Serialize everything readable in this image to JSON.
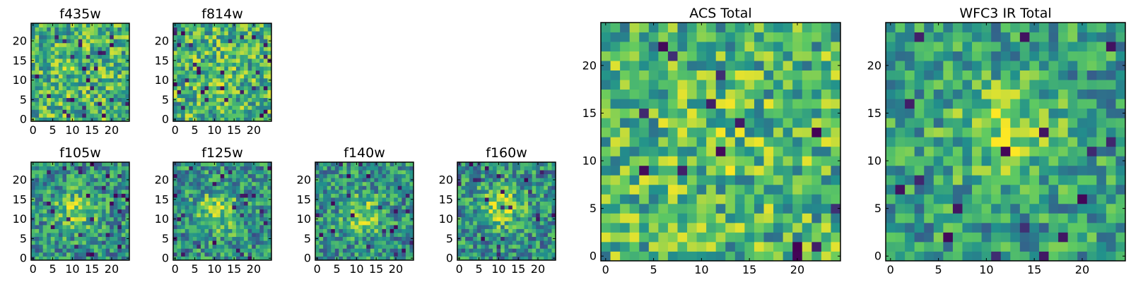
{
  "colors": {
    "viridis": [
      "#440154",
      "#3b528b",
      "#21918c",
      "#5ec962",
      "#fde725"
    ],
    "frame": "#000000",
    "background": "#ffffff"
  },
  "chart_data": [
    {
      "type": "heatmap",
      "title": "f435w",
      "grid_size": 25,
      "xlim": [
        -0.5,
        24.5
      ],
      "ylim": [
        -0.5,
        24.5
      ],
      "xticks": [
        0,
        5,
        10,
        15,
        20
      ],
      "yticks": [
        0,
        5,
        10,
        15,
        20
      ],
      "xtick_labels": [
        "0",
        "5",
        "10",
        "15",
        "20"
      ],
      "ytick_labels": [
        "0",
        "5",
        "10",
        "15",
        "20"
      ],
      "colormap": "viridis",
      "value_range": [
        0,
        1
      ],
      "seed": 435,
      "peak": {
        "x": 12,
        "y": 12,
        "amplitude": 0.05
      },
      "noise": 0.3,
      "base": 0.65
    },
    {
      "type": "heatmap",
      "title": "f814w",
      "grid_size": 25,
      "xlim": [
        -0.5,
        24.5
      ],
      "ylim": [
        -0.5,
        24.5
      ],
      "xticks": [
        0,
        5,
        10,
        15,
        20
      ],
      "yticks": [
        0,
        5,
        10,
        15,
        20
      ],
      "xtick_labels": [
        "0",
        "5",
        "10",
        "15",
        "20"
      ],
      "ytick_labels": [
        "0",
        "5",
        "10",
        "15",
        "20"
      ],
      "colormap": "viridis",
      "value_range": [
        0,
        1
      ],
      "seed": 814,
      "peak": {
        "x": 12,
        "y": 12,
        "amplitude": 0.05
      },
      "noise": 0.3,
      "base": 0.65
    },
    {
      "type": "heatmap",
      "title": "f105w",
      "grid_size": 25,
      "xlim": [
        -0.5,
        24.5
      ],
      "ylim": [
        -0.5,
        24.5
      ],
      "xticks": [
        0,
        5,
        10,
        15,
        20
      ],
      "yticks": [
        0,
        5,
        10,
        15,
        20
      ],
      "xtick_labels": [
        "0",
        "5",
        "10",
        "15",
        "20"
      ],
      "ytick_labels": [
        "0",
        "5",
        "10",
        "15",
        "20"
      ],
      "colormap": "viridis",
      "value_range": [
        0,
        1
      ],
      "seed": 105,
      "peak": {
        "x": 11,
        "y": 12,
        "amplitude": 0.3
      },
      "noise": 0.28,
      "base": 0.5
    },
    {
      "type": "heatmap",
      "title": "f125w",
      "grid_size": 25,
      "xlim": [
        -0.5,
        24.5
      ],
      "ylim": [
        -0.5,
        24.5
      ],
      "xticks": [
        0,
        5,
        10,
        15,
        20
      ],
      "yticks": [
        0,
        5,
        10,
        15,
        20
      ],
      "xtick_labels": [
        "0",
        "5",
        "10",
        "15",
        "20"
      ],
      "ytick_labels": [
        "0",
        "5",
        "10",
        "15",
        "20"
      ],
      "colormap": "viridis",
      "value_range": [
        0,
        1
      ],
      "seed": 125,
      "peak": {
        "x": 11,
        "y": 12,
        "amplitude": 0.3
      },
      "noise": 0.28,
      "base": 0.5
    },
    {
      "type": "heatmap",
      "title": "f140w",
      "grid_size": 25,
      "xlim": [
        -0.5,
        24.5
      ],
      "ylim": [
        -0.5,
        24.5
      ],
      "xticks": [
        0,
        5,
        10,
        15,
        20
      ],
      "yticks": [
        0,
        5,
        10,
        15,
        20
      ],
      "xtick_labels": [
        "0",
        "5",
        "10",
        "15",
        "20"
      ],
      "ytick_labels": [
        "0",
        "5",
        "10",
        "15",
        "20"
      ],
      "colormap": "viridis",
      "value_range": [
        0,
        1
      ],
      "seed": 140,
      "peak": {
        "x": 12,
        "y": 11,
        "amplitude": 0.3
      },
      "noise": 0.28,
      "base": 0.5
    },
    {
      "type": "heatmap",
      "title": "f160w",
      "grid_size": 25,
      "xlim": [
        -0.5,
        24.5
      ],
      "ylim": [
        -0.5,
        24.5
      ],
      "xticks": [
        0,
        5,
        10,
        15,
        20
      ],
      "yticks": [
        0,
        5,
        10,
        15,
        20
      ],
      "xtick_labels": [
        "0",
        "5",
        "10",
        "15",
        "20"
      ],
      "ytick_labels": [
        "0",
        "5",
        "10",
        "15",
        "20"
      ],
      "colormap": "viridis",
      "value_range": [
        0,
        1
      ],
      "seed": 160,
      "peak": {
        "x": 11,
        "y": 13,
        "amplitude": 0.32
      },
      "noise": 0.28,
      "base": 0.5
    },
    {
      "type": "heatmap",
      "title": "ACS Total",
      "grid_size": 25,
      "xlim": [
        -0.5,
        24.5
      ],
      "ylim": [
        -0.5,
        24.5
      ],
      "xticks": [
        0,
        5,
        10,
        15,
        20
      ],
      "yticks": [
        0,
        5,
        10,
        15,
        20
      ],
      "xtick_labels": [
        "0",
        "5",
        "10",
        "15",
        "20"
      ],
      "ytick_labels": [
        "0",
        "5",
        "10",
        "15",
        "20"
      ],
      "colormap": "viridis",
      "value_range": [
        0,
        1
      ],
      "seed": 7,
      "peak": {
        "x": 12,
        "y": 12,
        "amplitude": 0.06
      },
      "noise": 0.3,
      "base": 0.66
    },
    {
      "type": "heatmap",
      "title": "WFC3 IR Total",
      "grid_size": 25,
      "xlim": [
        -0.5,
        24.5
      ],
      "ylim": [
        -0.5,
        24.5
      ],
      "xticks": [
        0,
        5,
        10,
        15,
        20
      ],
      "yticks": [
        0,
        5,
        10,
        15,
        20
      ],
      "xtick_labels": [
        "0",
        "5",
        "10",
        "15",
        "20"
      ],
      "ytick_labels": [
        "0",
        "5",
        "10",
        "15",
        "20"
      ],
      "colormap": "viridis",
      "value_range": [
        0,
        1
      ],
      "seed": 3,
      "peak": {
        "x": 12,
        "y": 13,
        "amplitude": 0.28
      },
      "noise": 0.26,
      "base": 0.55
    }
  ]
}
